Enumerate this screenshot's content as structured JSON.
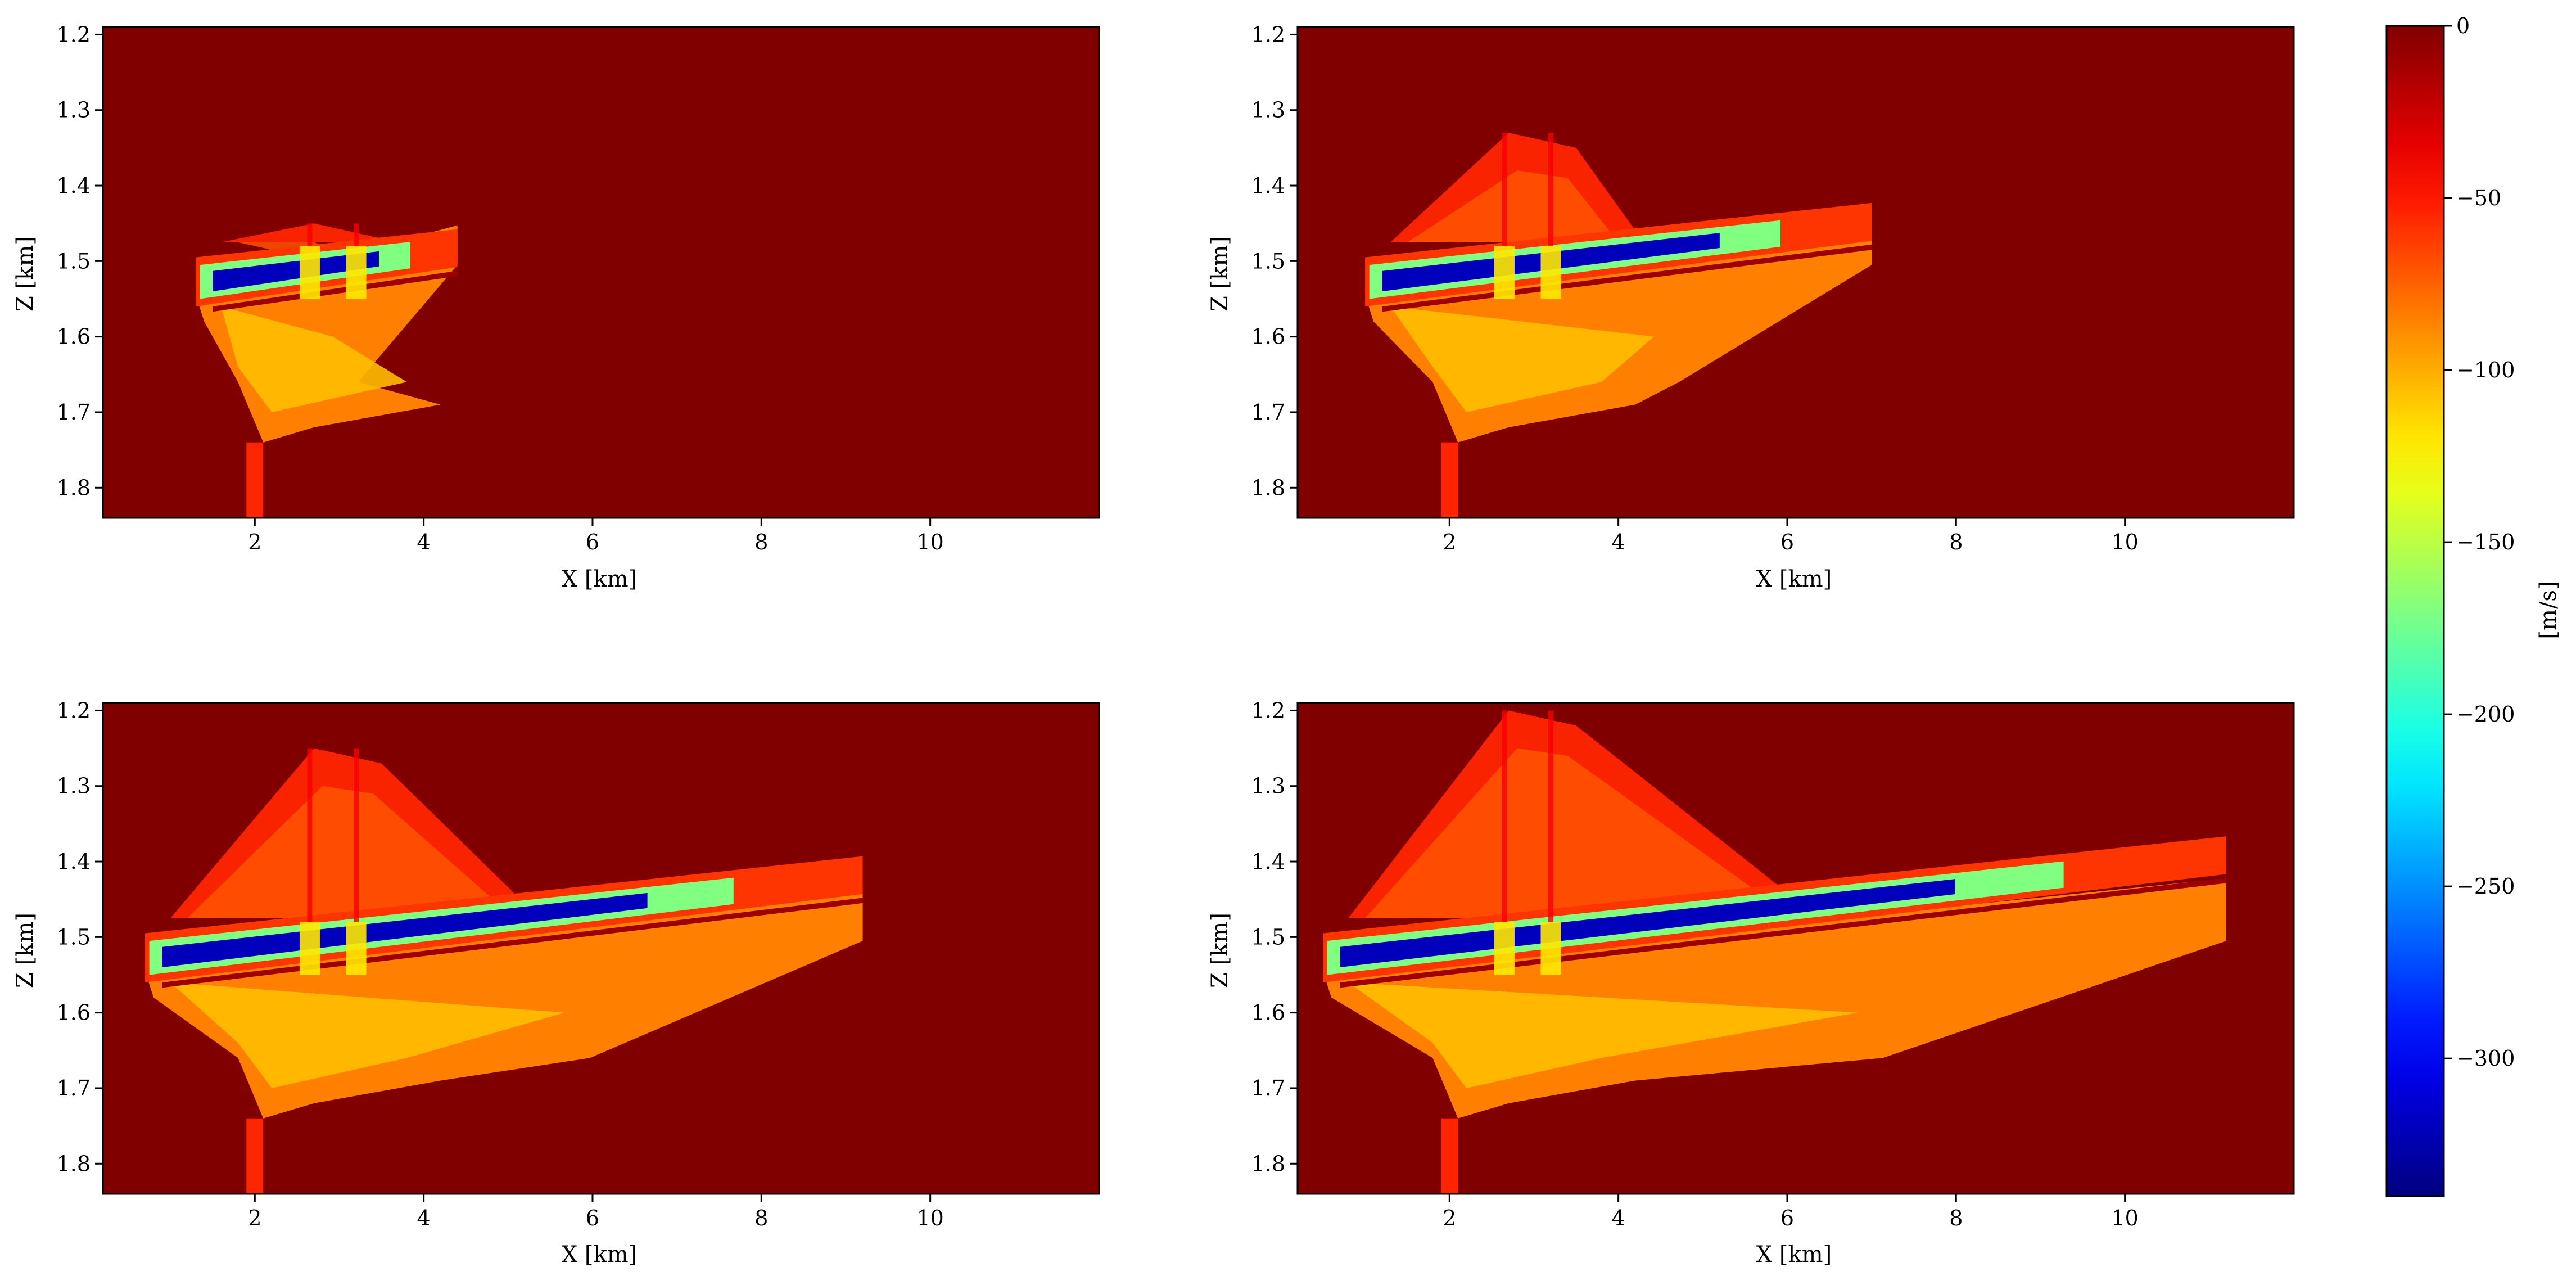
{
  "chart_data": [
    {
      "type": "heatmap",
      "panel": "top-left",
      "xlabel": "X [km]",
      "ylabel": "Z [km]",
      "xlim": [
        0.2,
        12.0
      ],
      "ylim": [
        1.84,
        1.19
      ],
      "xticks": [
        {
          "v": 2,
          "label": "2"
        },
        {
          "v": 4,
          "label": "4"
        },
        {
          "v": 6,
          "label": "6"
        },
        {
          "v": 8,
          "label": "8"
        },
        {
          "v": 10,
          "label": "10"
        }
      ],
      "yticks": [
        {
          "v": 1.2,
          "label": "1.2"
        },
        {
          "v": 1.3,
          "label": "1.3"
        },
        {
          "v": 1.4,
          "label": "1.4"
        },
        {
          "v": 1.5,
          "label": "1.5"
        },
        {
          "v": 1.6,
          "label": "1.6"
        },
        {
          "v": 1.7,
          "label": "1.7"
        },
        {
          "v": 1.8,
          "label": "1.8"
        }
      ],
      "background_value": 0,
      "plume_extent_x_km": [
        1.3,
        4.4
      ],
      "plume_top_z_km": 1.45,
      "plume_core_value": -320,
      "core_layer_z_km": 1.525,
      "wells_x_km": [
        2.65,
        3.2
      ]
    },
    {
      "type": "heatmap",
      "panel": "top-right",
      "xlabel": "X [km]",
      "ylabel": "Z [km]",
      "xlim": [
        0.2,
        12.0
      ],
      "ylim": [
        1.84,
        1.19
      ],
      "xticks": [
        {
          "v": 2,
          "label": "2"
        },
        {
          "v": 4,
          "label": "4"
        },
        {
          "v": 6,
          "label": "6"
        },
        {
          "v": 8,
          "label": "8"
        },
        {
          "v": 10,
          "label": "10"
        }
      ],
      "yticks": [
        {
          "v": 1.2,
          "label": "1.2"
        },
        {
          "v": 1.3,
          "label": "1.3"
        },
        {
          "v": 1.4,
          "label": "1.4"
        },
        {
          "v": 1.5,
          "label": "1.5"
        },
        {
          "v": 1.6,
          "label": "1.6"
        },
        {
          "v": 1.7,
          "label": "1.7"
        },
        {
          "v": 1.8,
          "label": "1.8"
        }
      ],
      "background_value": 0,
      "plume_extent_x_km": [
        1.0,
        7.0
      ],
      "plume_top_z_km": 1.33,
      "plume_core_value": -320,
      "core_layer_z_km": 1.525,
      "wells_x_km": [
        2.65,
        3.2
      ]
    },
    {
      "type": "heatmap",
      "panel": "bottom-left",
      "xlabel": "X [km]",
      "ylabel": "Z [km]",
      "xlim": [
        0.2,
        12.0
      ],
      "ylim": [
        1.84,
        1.19
      ],
      "xticks": [
        {
          "v": 2,
          "label": "2"
        },
        {
          "v": 4,
          "label": "4"
        },
        {
          "v": 6,
          "label": "6"
        },
        {
          "v": 8,
          "label": "8"
        },
        {
          "v": 10,
          "label": "10"
        }
      ],
      "yticks": [
        {
          "v": 1.2,
          "label": "1.2"
        },
        {
          "v": 1.3,
          "label": "1.3"
        },
        {
          "v": 1.4,
          "label": "1.4"
        },
        {
          "v": 1.5,
          "label": "1.5"
        },
        {
          "v": 1.6,
          "label": "1.6"
        },
        {
          "v": 1.7,
          "label": "1.7"
        },
        {
          "v": 1.8,
          "label": "1.8"
        }
      ],
      "background_value": 0,
      "plume_extent_x_km": [
        0.7,
        9.2
      ],
      "plume_top_z_km": 1.25,
      "plume_core_value": -320,
      "core_layer_z_km": 1.525,
      "wells_x_km": [
        2.65,
        3.2
      ]
    },
    {
      "type": "heatmap",
      "panel": "bottom-right",
      "xlabel": "X [km]",
      "ylabel": "Z [km]",
      "xlim": [
        0.2,
        12.0
      ],
      "ylim": [
        1.84,
        1.19
      ],
      "xticks": [
        {
          "v": 2,
          "label": "2"
        },
        {
          "v": 4,
          "label": "4"
        },
        {
          "v": 6,
          "label": "6"
        },
        {
          "v": 8,
          "label": "8"
        },
        {
          "v": 10,
          "label": "10"
        }
      ],
      "yticks": [
        {
          "v": 1.2,
          "label": "1.2"
        },
        {
          "v": 1.3,
          "label": "1.3"
        },
        {
          "v": 1.4,
          "label": "1.4"
        },
        {
          "v": 1.5,
          "label": "1.5"
        },
        {
          "v": 1.6,
          "label": "1.6"
        },
        {
          "v": 1.7,
          "label": "1.7"
        },
        {
          "v": 1.8,
          "label": "1.8"
        }
      ],
      "background_value": 0,
      "plume_extent_x_km": [
        0.5,
        11.2
      ],
      "plume_top_z_km": 1.2,
      "plume_core_value": -320,
      "core_layer_z_km": 1.525,
      "wells_x_km": [
        2.65,
        3.2
      ]
    }
  ],
  "colorbar": {
    "label": "[m/s]",
    "range": [
      -340,
      0
    ],
    "colormap": "jet",
    "ticks": [
      {
        "v": 0,
        "label": "0"
      },
      {
        "v": -50,
        "label": "−50"
      },
      {
        "v": -100,
        "label": "−100"
      },
      {
        "v": -150,
        "label": "−150"
      },
      {
        "v": -200,
        "label": "−200"
      },
      {
        "v": -250,
        "label": "−250"
      },
      {
        "v": -300,
        "label": "−300"
      }
    ]
  }
}
